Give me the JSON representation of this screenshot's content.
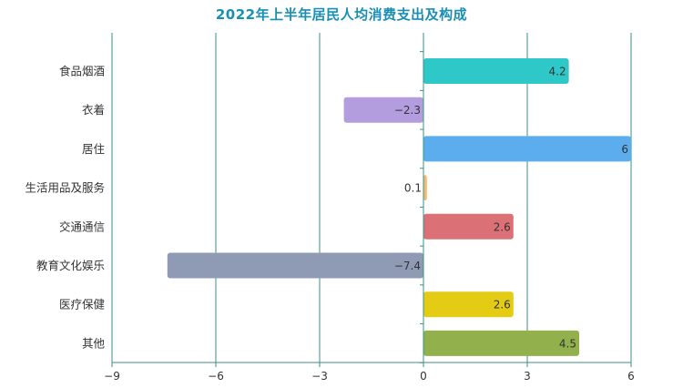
{
  "chart_data": {
    "type": "bar",
    "orientation": "horizontal",
    "title": "2022年上半年居民人均消费支出及构成",
    "categories": [
      "食品烟酒",
      "衣着",
      "居住",
      "生活用品及服务",
      "交通通信",
      "教育文化娱乐",
      "医疗保健",
      "其他"
    ],
    "values": [
      4.2,
      -2.3,
      6,
      0.1,
      2.6,
      -7.4,
      2.6,
      4.5
    ],
    "value_labels": [
      "4.2",
      "−2.3",
      "6",
      "0.1",
      "2.6",
      "−7.4",
      "2.6",
      "4.5"
    ],
    "colors": [
      "#2ec8c8",
      "#b39ddf",
      "#5cadee",
      "#f5b86f",
      "#db7176",
      "#8f9bb5",
      "#e3cc13",
      "#92b04c"
    ],
    "xlim": [
      -9,
      6
    ],
    "xticks": [
      -9,
      -6,
      -3,
      0,
      3,
      6
    ],
    "xtick_labels": [
      "−9",
      "−6",
      "−3",
      "0",
      "3",
      "6"
    ],
    "grid": "vertical",
    "xlabel": "",
    "ylabel": ""
  }
}
